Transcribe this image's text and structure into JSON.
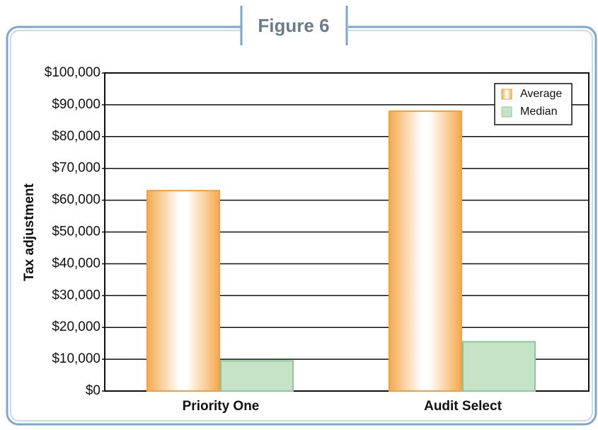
{
  "chart_data": {
    "type": "bar",
    "title": "Figure 6",
    "y_label": "Tax adjustment",
    "categories": [
      "Priority One",
      "Audit Select"
    ],
    "series": [
      {
        "name": "Average",
        "color": "#f5a94d",
        "values": [
          63000,
          88000
        ]
      },
      {
        "name": "Median",
        "color": "#c5e3c6",
        "values": [
          9500,
          15500
        ]
      }
    ],
    "ylim": [
      0,
      100000
    ],
    "yticks": [
      {
        "value": 0,
        "label": "$0"
      },
      {
        "value": 10000,
        "label": "$10,000"
      },
      {
        "value": 20000,
        "label": "$20,000"
      },
      {
        "value": 30000,
        "label": "$30,000"
      },
      {
        "value": 40000,
        "label": "$40,000"
      },
      {
        "value": 50000,
        "label": "$50,000"
      },
      {
        "value": 60000,
        "label": "$60,000"
      },
      {
        "value": 70000,
        "label": "$70,000"
      },
      {
        "value": 80000,
        "label": "$80,000"
      },
      {
        "value": 90000,
        "label": "$90,000"
      },
      {
        "value": 100000,
        "label": "$100,000"
      }
    ],
    "grid": true,
    "legend": "upper right"
  }
}
